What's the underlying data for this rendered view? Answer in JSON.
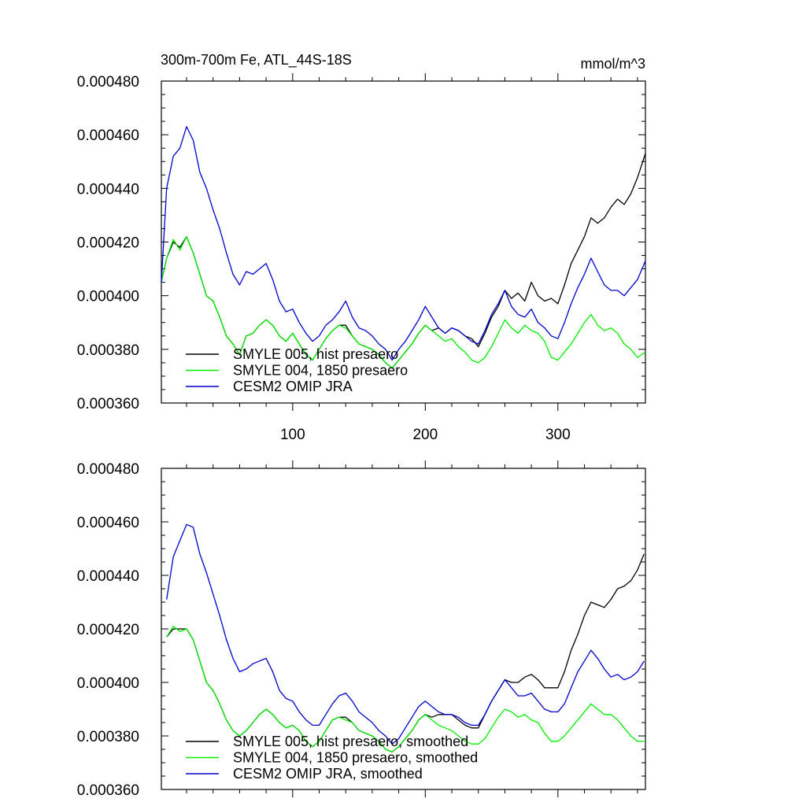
{
  "figure": {
    "title": "300m-700m Fe, ATL_44S-18S",
    "units": "mmol/m^3"
  },
  "chart_data": [
    {
      "type": "line",
      "title": "300m-700m Fe, ATL_44S-18S",
      "units_label": "mmol/m^3",
      "xlabel": "",
      "ylabel": "",
      "xlim": [
        1,
        366
      ],
      "ylim": [
        0.00036,
        0.00048
      ],
      "xticks": [
        100,
        200,
        300
      ],
      "xtick_labels": [
        "100",
        "200",
        "300"
      ],
      "yticks": [
        0.00036,
        0.00038,
        0.0004,
        0.00042,
        0.00044,
        0.00046,
        0.00048
      ],
      "ytick_labels": [
        "0.000360",
        "0.000380",
        "0.000400",
        "0.000420",
        "0.000440",
        "0.000460",
        "0.000480"
      ],
      "legend_position": "bottom-left",
      "series": [
        {
          "name": "SMYLE 005, hist presaero",
          "color": "#000000",
          "x": [
            1,
            5,
            10,
            15,
            20,
            25,
            30,
            35,
            40,
            45,
            50,
            55,
            60,
            65,
            70,
            75,
            80,
            85,
            90,
            95,
            100,
            105,
            110,
            115,
            120,
            125,
            130,
            135,
            140,
            145,
            150,
            155,
            160,
            165,
            170,
            175,
            180,
            185,
            190,
            195,
            200,
            205,
            210,
            215,
            220,
            225,
            230,
            235,
            240,
            245,
            250,
            255,
            260,
            265,
            270,
            275,
            280,
            285,
            290,
            295,
            300,
            305,
            310,
            315,
            320,
            325,
            330,
            335,
            340,
            345,
            350,
            355,
            360,
            366
          ],
          "values": [
            0.000405,
            0.000414,
            0.00042,
            0.000418,
            0.000422,
            0.000416,
            0.000408,
            0.0004,
            0.000398,
            0.000392,
            0.000385,
            0.000382,
            0.000378,
            0.000385,
            0.000386,
            0.000389,
            0.000391,
            0.000389,
            0.000385,
            0.000383,
            0.000386,
            0.000382,
            0.000378,
            0.000376,
            0.00038,
            0.000384,
            0.000387,
            0.000389,
            0.000389,
            0.000385,
            0.000382,
            0.000381,
            0.00038,
            0.000378,
            0.000375,
            0.000373,
            0.000376,
            0.000379,
            0.000382,
            0.000386,
            0.000389,
            0.000387,
            0.000388,
            0.000386,
            0.000388,
            0.000387,
            0.000385,
            0.000384,
            0.000381,
            0.000386,
            0.000392,
            0.000396,
            0.000402,
            0.000399,
            0.000401,
            0.000398,
            0.000405,
            0.0004,
            0.000398,
            0.000399,
            0.000397,
            0.000404,
            0.000412,
            0.000417,
            0.000422,
            0.000429,
            0.000427,
            0.000429,
            0.000433,
            0.000436,
            0.000434,
            0.000438,
            0.000444,
            0.000453
          ]
        },
        {
          "name": "SMYLE 004, 1850 presaero",
          "color": "#00ee00",
          "x": [
            1,
            5,
            10,
            15,
            20,
            25,
            30,
            35,
            40,
            45,
            50,
            55,
            60,
            65,
            70,
            75,
            80,
            85,
            90,
            95,
            100,
            105,
            110,
            115,
            120,
            125,
            130,
            135,
            140,
            145,
            150,
            155,
            160,
            165,
            170,
            175,
            180,
            185,
            190,
            195,
            200,
            205,
            210,
            215,
            220,
            225,
            230,
            235,
            240,
            245,
            250,
            255,
            260,
            265,
            270,
            275,
            280,
            285,
            290,
            295,
            300,
            305,
            310,
            315,
            320,
            325,
            330,
            335,
            340,
            345,
            350,
            355,
            360,
            366
          ],
          "values": [
            0.000405,
            0.000414,
            0.000421,
            0.000417,
            0.000422,
            0.000416,
            0.000408,
            0.0004,
            0.000398,
            0.000392,
            0.000385,
            0.000382,
            0.000378,
            0.000385,
            0.000386,
            0.000389,
            0.000391,
            0.000389,
            0.000385,
            0.000383,
            0.000386,
            0.000382,
            0.000378,
            0.000376,
            0.00038,
            0.000384,
            0.000387,
            0.000389,
            0.000388,
            0.000385,
            0.000382,
            0.000381,
            0.00038,
            0.000378,
            0.000375,
            0.000373,
            0.000376,
            0.000379,
            0.000382,
            0.000386,
            0.000389,
            0.000387,
            0.000385,
            0.000383,
            0.000384,
            0.000381,
            0.000379,
            0.000376,
            0.000375,
            0.000377,
            0.000381,
            0.000386,
            0.000391,
            0.000388,
            0.000386,
            0.000389,
            0.000387,
            0.000386,
            0.000383,
            0.000377,
            0.000376,
            0.000379,
            0.000382,
            0.000386,
            0.00039,
            0.000393,
            0.000389,
            0.000387,
            0.000388,
            0.000386,
            0.000382,
            0.00038,
            0.000377,
            0.000379
          ]
        },
        {
          "name": "CESM2 OMIP JRA",
          "color": "#0000cc",
          "x": [
            1,
            5,
            10,
            15,
            20,
            25,
            30,
            35,
            40,
            45,
            50,
            55,
            60,
            65,
            70,
            75,
            80,
            85,
            90,
            95,
            100,
            105,
            110,
            115,
            120,
            125,
            130,
            135,
            140,
            145,
            150,
            155,
            160,
            165,
            170,
            175,
            180,
            185,
            190,
            195,
            200,
            205,
            210,
            215,
            220,
            225,
            230,
            235,
            240,
            245,
            250,
            255,
            260,
            265,
            270,
            275,
            280,
            285,
            290,
            295,
            300,
            305,
            310,
            315,
            320,
            325,
            330,
            335,
            340,
            345,
            350,
            355,
            360,
            366
          ],
          "values": [
            0.000405,
            0.00044,
            0.000452,
            0.000455,
            0.000463,
            0.000458,
            0.000446,
            0.00044,
            0.000432,
            0.000425,
            0.000416,
            0.000408,
            0.000404,
            0.000409,
            0.000408,
            0.00041,
            0.000412,
            0.000406,
            0.000398,
            0.000394,
            0.000395,
            0.00039,
            0.000386,
            0.000383,
            0.000385,
            0.000389,
            0.000391,
            0.000394,
            0.000398,
            0.000392,
            0.000388,
            0.000387,
            0.000385,
            0.000382,
            0.00038,
            0.000376,
            0.00038,
            0.000383,
            0.000387,
            0.000391,
            0.000396,
            0.000392,
            0.000388,
            0.000386,
            0.000388,
            0.000387,
            0.000385,
            0.000383,
            0.000382,
            0.000387,
            0.000393,
            0.000397,
            0.000402,
            0.000396,
            0.000393,
            0.000392,
            0.000395,
            0.00039,
            0.000388,
            0.000385,
            0.000384,
            0.00039,
            0.000397,
            0.000403,
            0.000408,
            0.000414,
            0.000409,
            0.000404,
            0.000402,
            0.000402,
            0.0004,
            0.000403,
            0.000406,
            0.000413
          ]
        }
      ]
    },
    {
      "type": "line",
      "title": "",
      "xlabel": "",
      "ylabel": "",
      "xlim": [
        1,
        366
      ],
      "ylim": [
        0.00036,
        0.00048
      ],
      "xticks": [
        100,
        200,
        300
      ],
      "xtick_labels": [],
      "yticks": [
        0.00036,
        0.00038,
        0.0004,
        0.00042,
        0.00044,
        0.00046,
        0.00048
      ],
      "ytick_labels": [
        "0.000360",
        "0.000380",
        "0.000400",
        "0.000420",
        "0.000440",
        "0.000460",
        "0.000480"
      ],
      "legend_position": "bottom-left",
      "series": [
        {
          "name": "SMYLE 005, hist presaero, smoothed",
          "color": "#000000",
          "x": [
            5,
            10,
            15,
            20,
            25,
            30,
            35,
            40,
            45,
            50,
            55,
            60,
            65,
            70,
            75,
            80,
            85,
            90,
            95,
            100,
            105,
            110,
            115,
            120,
            125,
            130,
            135,
            140,
            145,
            150,
            155,
            160,
            165,
            170,
            175,
            180,
            185,
            190,
            195,
            200,
            205,
            210,
            215,
            220,
            225,
            230,
            235,
            240,
            245,
            250,
            255,
            260,
            265,
            270,
            275,
            280,
            285,
            290,
            295,
            300,
            305,
            310,
            315,
            320,
            325,
            330,
            335,
            340,
            345,
            350,
            355,
            360,
            365
          ],
          "values": [
            0.000417,
            0.00042,
            0.00042,
            0.00042,
            0.000416,
            0.000408,
            0.0004,
            0.000397,
            0.000392,
            0.000386,
            0.000382,
            0.00038,
            0.000382,
            0.000385,
            0.000388,
            0.00039,
            0.000388,
            0.000385,
            0.000383,
            0.000384,
            0.000382,
            0.000378,
            0.000376,
            0.000378,
            0.000382,
            0.000386,
            0.000387,
            0.000387,
            0.000385,
            0.000382,
            0.000381,
            0.00038,
            0.000378,
            0.000375,
            0.000374,
            0.000376,
            0.000379,
            0.000382,
            0.000386,
            0.000388,
            0.000387,
            0.000388,
            0.000388,
            0.000388,
            0.000386,
            0.000384,
            0.000383,
            0.000383,
            0.000388,
            0.000393,
            0.000397,
            0.000401,
            0.0004,
            0.0004,
            0.000402,
            0.000403,
            0.000401,
            0.000398,
            0.000398,
            0.000398,
            0.000404,
            0.000412,
            0.000418,
            0.000425,
            0.00043,
            0.000429,
            0.000428,
            0.000431,
            0.000435,
            0.000436,
            0.000438,
            0.000442,
            0.000448
          ]
        },
        {
          "name": "SMYLE 004, 1850 presaero, smoothed",
          "color": "#00ee00",
          "x": [
            5,
            10,
            15,
            20,
            25,
            30,
            35,
            40,
            45,
            50,
            55,
            60,
            65,
            70,
            75,
            80,
            85,
            90,
            95,
            100,
            105,
            110,
            115,
            120,
            125,
            130,
            135,
            140,
            145,
            150,
            155,
            160,
            165,
            170,
            175,
            180,
            185,
            190,
            195,
            200,
            205,
            210,
            215,
            220,
            225,
            230,
            235,
            240,
            245,
            250,
            255,
            260,
            265,
            270,
            275,
            280,
            285,
            290,
            295,
            300,
            305,
            310,
            315,
            320,
            325,
            330,
            335,
            340,
            345,
            350,
            355,
            360,
            365
          ],
          "values": [
            0.000417,
            0.000421,
            0.000419,
            0.00042,
            0.000416,
            0.000408,
            0.0004,
            0.000397,
            0.000392,
            0.000386,
            0.000382,
            0.00038,
            0.000382,
            0.000385,
            0.000388,
            0.00039,
            0.000388,
            0.000385,
            0.000383,
            0.000384,
            0.000382,
            0.000378,
            0.000376,
            0.000378,
            0.000382,
            0.000386,
            0.000387,
            0.000386,
            0.000385,
            0.000382,
            0.000381,
            0.00038,
            0.000378,
            0.000375,
            0.000374,
            0.000376,
            0.000379,
            0.000382,
            0.000386,
            0.000388,
            0.000386,
            0.000384,
            0.000383,
            0.000382,
            0.00038,
            0.000378,
            0.000377,
            0.000377,
            0.000379,
            0.000383,
            0.000387,
            0.00039,
            0.000389,
            0.000387,
            0.000388,
            0.000386,
            0.000385,
            0.000381,
            0.000378,
            0.000378,
            0.00038,
            0.000383,
            0.000386,
            0.000389,
            0.000392,
            0.00039,
            0.000388,
            0.000388,
            0.000386,
            0.000383,
            0.00038,
            0.000378,
            0.000378
          ]
        },
        {
          "name": "CESM2 OMIP JRA, smoothed",
          "color": "#0000cc",
          "x": [
            5,
            10,
            15,
            20,
            25,
            30,
            35,
            40,
            45,
            50,
            55,
            60,
            65,
            70,
            75,
            80,
            85,
            90,
            95,
            100,
            105,
            110,
            115,
            120,
            125,
            130,
            135,
            140,
            145,
            150,
            155,
            160,
            165,
            170,
            175,
            180,
            185,
            190,
            195,
            200,
            205,
            210,
            215,
            220,
            225,
            230,
            235,
            240,
            245,
            250,
            255,
            260,
            265,
            270,
            275,
            280,
            285,
            290,
            295,
            300,
            305,
            310,
            315,
            320,
            325,
            330,
            335,
            340,
            345,
            350,
            355,
            360,
            365
          ],
          "values": [
            0.000431,
            0.000447,
            0.000453,
            0.000459,
            0.000458,
            0.000448,
            0.000441,
            0.000433,
            0.000425,
            0.000416,
            0.000409,
            0.000404,
            0.000405,
            0.000407,
            0.000408,
            0.000409,
            0.000404,
            0.000397,
            0.000394,
            0.000393,
            0.000389,
            0.000386,
            0.000384,
            0.000384,
            0.000388,
            0.000392,
            0.000395,
            0.000396,
            0.000393,
            0.000389,
            0.000387,
            0.000385,
            0.000382,
            0.00038,
            0.000377,
            0.000379,
            0.000383,
            0.000387,
            0.000391,
            0.000393,
            0.000391,
            0.000389,
            0.000388,
            0.000388,
            0.000387,
            0.000385,
            0.000384,
            0.000384,
            0.000388,
            0.000393,
            0.000397,
            0.000401,
            0.000398,
            0.000395,
            0.000395,
            0.000396,
            0.000393,
            0.00039,
            0.000389,
            0.000389,
            0.000392,
            0.000398,
            0.000404,
            0.000408,
            0.000412,
            0.000409,
            0.000405,
            0.000402,
            0.000403,
            0.000401,
            0.000402,
            0.000404,
            0.000408
          ]
        }
      ]
    }
  ]
}
